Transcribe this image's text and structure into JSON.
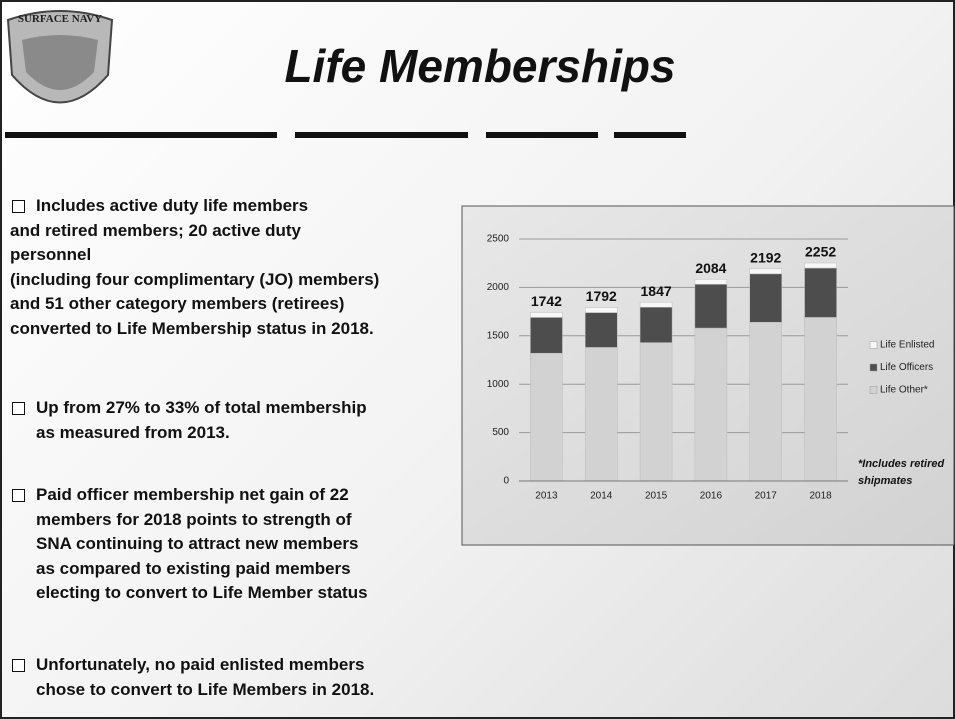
{
  "header": {
    "title": "Life Memberships",
    "logo_text": "SURFACE NAVY"
  },
  "bullets": [
    [
      "Includes active duty life members",
      "and retired members; 20 active duty",
      "personnel",
      "(including four complimentary (JO) members)",
      "and 51 other category members (retirees)",
      "converted to Life Membership status in 2018."
    ],
    [
      "Up from 27% to 33% of total membership",
      "as measured from 2013."
    ],
    [
      "Paid officer membership net gain of 22",
      "members for 2018 points to strength of",
      "SNA continuing to attract new members",
      "as compared to existing paid members",
      "electing to convert to Life Member status"
    ],
    [
      "Unfortunately, no paid enlisted members",
      "chose to convert to Life Members in 2018."
    ]
  ],
  "chart_data": {
    "type": "stacked_bar",
    "categories": [
      "2013",
      "2014",
      "2015",
      "2016",
      "2017",
      "2018"
    ],
    "series": [
      {
        "name": "Life Enlisted",
        "color": "#f7f7f7",
        "values": [
          52,
          52,
          52,
          52,
          52,
          52
        ]
      },
      {
        "name": "Life Officers",
        "color": "#4d4d4d",
        "values": [
          370,
          360,
          365,
          452,
          500,
          510
        ]
      },
      {
        "name": "Life Other*",
        "color": "#d2d2d2",
        "values": [
          1320,
          1380,
          1430,
          1580,
          1640,
          1690
        ]
      }
    ],
    "totals": [
      1742,
      1792,
      1847,
      2084,
      2192,
      2252
    ],
    "ylim": [
      0,
      2500
    ],
    "yticks": [
      0,
      500,
      1000,
      1500,
      2000,
      2500
    ],
    "grid": true,
    "legend": "right",
    "note_lines": [
      "*Includes retired",
      "shipmates"
    ]
  }
}
